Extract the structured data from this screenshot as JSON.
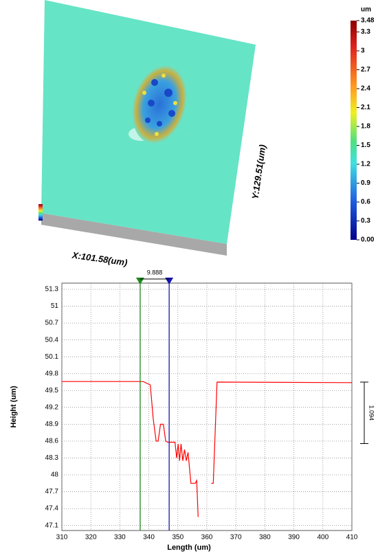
{
  "chart_data": [
    {
      "type": "surface",
      "colorbar_title": "um",
      "clim": [
        0,
        3.48
      ],
      "colorbar_ticks": [
        {
          "value": 0,
          "label": "0.00"
        },
        0.3,
        0.6,
        0.9,
        1.2,
        1.5,
        1.8,
        2.1,
        2.4,
        2.7,
        3,
        3.3,
        3.48
      ],
      "x_label": "X:101.58(um)",
      "y_label": "Y:129.51(um)"
    },
    {
      "type": "line",
      "xlabel": "Length (um)",
      "ylabel": "Height (um)",
      "xlim": [
        310,
        410
      ],
      "ylim": [
        47.01,
        51.41
      ],
      "xticks": [
        310,
        320,
        330,
        340,
        350,
        360,
        370,
        380,
        390,
        400,
        410
      ],
      "yticks": [
        47.1,
        47.4,
        47.7,
        48,
        48.3,
        48.6,
        48.9,
        49.2,
        49.5,
        49.8,
        50.1,
        50.4,
        50.7,
        51,
        51.3
      ],
      "grid": true,
      "series": [
        {
          "color": "#ff0000",
          "x": [
            310,
            338,
            340.5,
            341.5,
            342.5,
            343.2,
            344,
            345,
            345.8,
            346.5,
            348,
            349,
            349.6,
            350.1,
            350.6,
            351.1,
            351.7,
            352.3,
            352.9,
            353.5,
            354.5,
            356,
            356.5,
            357,
            359,
            361.5,
            362.2,
            363.5,
            410
          ],
          "values": [
            49.66,
            49.66,
            49.6,
            49.0,
            48.6,
            48.6,
            48.9,
            48.9,
            48.6,
            48.58,
            48.58,
            48.58,
            48.3,
            48.55,
            48.25,
            48.55,
            48.25,
            48.45,
            48.25,
            48.4,
            47.85,
            47.85,
            47.9,
            47.25,
            null,
            47.85,
            47.85,
            49.65,
            49.64
          ]
        }
      ],
      "cursors": [
        {
          "x": 337,
          "color": "#1a8a1a"
        },
        {
          "x": 347,
          "color": "#1515b0"
        }
      ],
      "cursor_label": "9.888",
      "height_marker": [
        48.556,
        49.65
      ],
      "height_label": "1.094"
    }
  ]
}
